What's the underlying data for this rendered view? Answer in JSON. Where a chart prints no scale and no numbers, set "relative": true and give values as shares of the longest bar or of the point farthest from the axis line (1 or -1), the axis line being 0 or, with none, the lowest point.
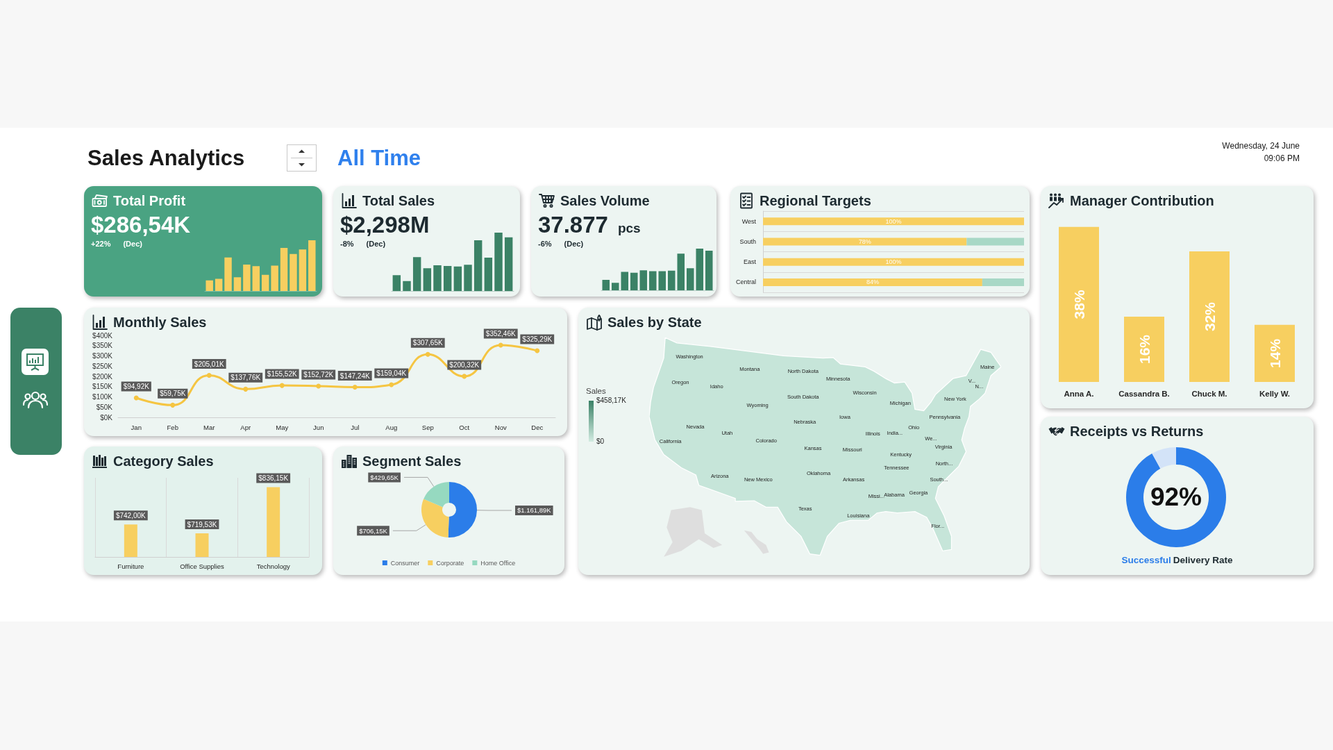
{
  "chart_data": [
    {
      "type": "other",
      "title": "Sales Analytics",
      "annotations": [
        "All Time",
        "Wednesday, 24 June",
        "09:06 PM"
      ]
    },
    {
      "type": "bar",
      "title": "Total Profit",
      "subtitle": "$286,54K",
      "annotations": [
        "+22%",
        "(Dec)"
      ],
      "categories": [
        null,
        null,
        null,
        null,
        null,
        null,
        null,
        null,
        null,
        null,
        null,
        null
      ],
      "values": [
        0.21,
        0.24,
        0.66,
        0.27,
        0.52,
        0.49,
        0.32,
        0.5,
        0.85,
        0.73,
        0.82,
        1
      ],
      "color": "#f7cf60",
      "relative": true
    },
    {
      "type": "bar",
      "title": "Total Sales",
      "subtitle": "$2,298M",
      "annotations": [
        "-8%",
        "(Dec)"
      ],
      "categories": [
        null,
        null,
        null,
        null,
        null,
        null,
        null,
        null,
        null,
        null,
        null,
        null
      ],
      "values": [
        0.27,
        0.17,
        0.58,
        0.39,
        0.44,
        0.43,
        0.42,
        0.45,
        0.87,
        0.57,
        1,
        0.92
      ],
      "color": "#3b8266",
      "relative": true
    },
    {
      "type": "bar",
      "title": "Sales Volume",
      "subtitle": "37.877",
      "annotations": [
        "pcs",
        "-6%",
        "(Dec)"
      ],
      "categories": [
        null,
        null,
        null,
        null,
        null,
        null,
        null,
        null,
        null,
        null,
        null,
        null
      ],
      "values": [
        0.25,
        0.18,
        0.44,
        0.42,
        0.48,
        0.46,
        0.46,
        0.47,
        0.88,
        0.53,
        1,
        0.95
      ],
      "color": "#3b8266",
      "relative": true
    },
    {
      "type": "bar",
      "title": "Regional Targets",
      "orientation": "horizontal",
      "stacked": true,
      "categories": [
        "West",
        "South",
        "East",
        "Central"
      ],
      "series": [
        {
          "color": "#f7cf60",
          "values": [
            100,
            78,
            100,
            84
          ],
          "value_labels": [
            "100%",
            "78%",
            "100%",
            "84%"
          ]
        },
        {
          "color": "#a8d8c6",
          "values": [
            0,
            22,
            0,
            16
          ]
        }
      ],
      "xlim": [
        0,
        100
      ],
      "tick_labels": "y",
      "grid": "y"
    },
    {
      "type": "bar",
      "title": "Manager Contribution",
      "categories": [
        "Anna A.",
        "Cassandra B.",
        "Chuck M.",
        "Kelly W."
      ],
      "values": [
        38,
        16,
        32,
        14
      ],
      "value_labels": [
        "38%",
        "16%",
        "32%",
        "14%"
      ],
      "color": "#f7cf60",
      "tick_labels": "x"
    },
    {
      "type": "line",
      "title": "Monthly Sales",
      "categories": [
        "Jan",
        "Feb",
        "Mar",
        "Apr",
        "May",
        "Jun",
        "Jul",
        "Aug",
        "Sep",
        "Oct",
        "Nov",
        "Dec"
      ],
      "values": [
        94.92,
        59.75,
        205.01,
        137.76,
        155.52,
        152.72,
        147.24,
        159.04,
        307.65,
        200.32,
        352.46,
        325.29
      ],
      "value_labels": [
        "$94,92K",
        "$59,75K",
        "$205,01K",
        "$137,76K",
        "$155,52K",
        "$152,72K",
        "$147,24K",
        "$159,04K",
        "$307,65K",
        "$200,32K",
        "$352,46K",
        "$325,29K"
      ],
      "color": "#f5c542",
      "marker": "circle",
      "ylim": [
        0,
        400
      ],
      "yticks": [
        {
          "value": 0,
          "label": "$0K"
        },
        {
          "value": 50,
          "label": "$50K"
        },
        {
          "value": 100,
          "label": "$100K"
        },
        {
          "value": 150,
          "label": "$150K"
        },
        {
          "value": 200,
          "label": "$200K"
        },
        {
          "value": 250,
          "label": "$250K"
        },
        {
          "value": 300,
          "label": "$300K"
        },
        {
          "value": 350,
          "label": "$350K"
        },
        {
          "value": 400,
          "label": "$400K"
        }
      ]
    },
    {
      "type": "other",
      "title": "Sales by State",
      "clabel": "Sales",
      "annotations": [
        "$458,17K",
        "$0"
      ],
      "categories": [
        "Washington",
        "Montana",
        "North Dakota",
        "Maine",
        "Minnesota",
        "Oregon",
        "V...",
        "Idaho",
        "N...",
        "Wisconsin",
        "South Dakota",
        "New York",
        "Michigan",
        "Wyoming",
        "Pennsylvania",
        "Iowa",
        "Nebraska",
        "Nevada",
        "Ohio",
        "Utah",
        "India...",
        "Illinois",
        "We...",
        "California",
        "Colorado",
        "Virginia",
        "Kansas",
        "Missouri",
        "Kentucky",
        "North...",
        "Tennessee",
        "Oklahoma",
        "Arizona",
        "Arkansas",
        "South...",
        "New Mexico",
        "Georgia",
        "Alabama",
        "Missi...",
        "Texas",
        "Louisiana",
        "Flor..."
      ]
    },
    {
      "type": "donut",
      "title": "Receipts vs Returns",
      "categories": [
        null,
        null
      ],
      "values": [
        92,
        8
      ],
      "colors": [
        "#2b7de9",
        "#d3e3f8"
      ],
      "annotations": [
        "92%",
        "Successful",
        "Delivery Rate"
      ]
    },
    {
      "type": "bar",
      "title": "Category Sales",
      "categories": [
        "Furniture",
        "Office Supplies",
        "Technology"
      ],
      "values": [
        742.0,
        719.53,
        836.15
      ],
      "value_labels": [
        "$742,00K",
        "$719,53K",
        "$836,15K"
      ],
      "color": "#f7cf60",
      "ylim": [
        660,
        860
      ],
      "tick_labels": "x",
      "grid": "x"
    },
    {
      "type": "donut",
      "title": "Segment Sales",
      "categories": [
        "Consumer",
        "Corporate",
        "Home Office"
      ],
      "values": [
        1161.89,
        706.15,
        429.65
      ],
      "colors": [
        "#2b7de9",
        "#f7cf60",
        "#96d9c0"
      ],
      "value_labels": [
        "$1.161,89K",
        "$706,15K",
        "$429,65K"
      ],
      "legend": "bottom"
    }
  ]
}
